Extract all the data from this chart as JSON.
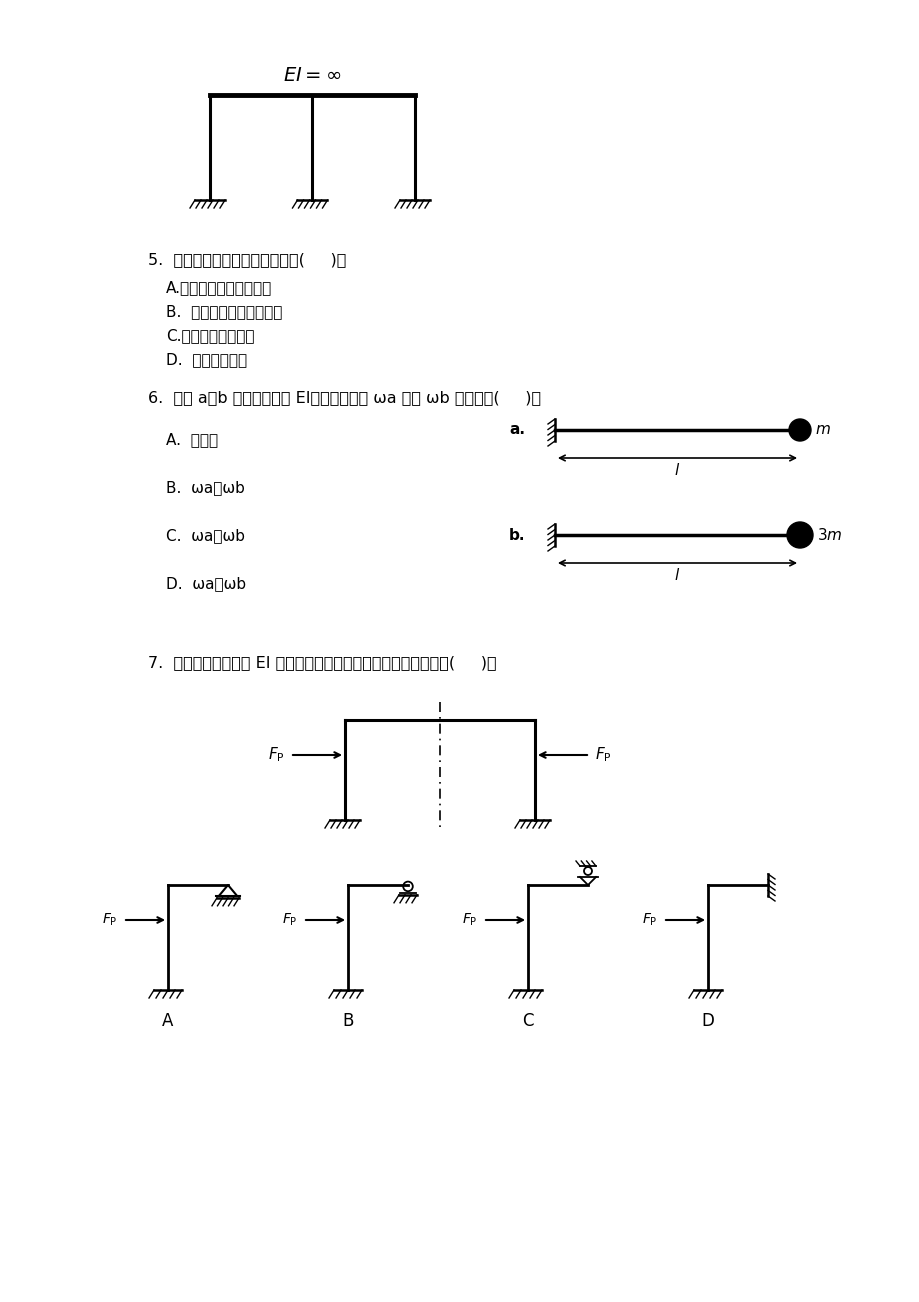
{
  "bg_color": "#ffffff",
  "q5_text": "5.  位移法典型方程的物理意义是(     )。",
  "q5_options": [
    "A.附加约束上的平衡方程",
    "B.  附加约束上的位移条件",
    "C.外力与内力的关系",
    "D.  反力互等定理"
  ],
  "q6_text": "6.  图示 a、b 两体系的相同 EI，其自振频率 ωa ，与 ωb 的关系为(     )。",
  "q6_options": [
    "A.  不确定",
    "B.  ωa＜ωb",
    "C.  ωa＝ωb",
    "D.  ωa＞ωb"
  ],
  "q7_text": "7.  图示对称结构杆件 EI 为常量，利用对称性简化后的一半结构为(     )。"
}
